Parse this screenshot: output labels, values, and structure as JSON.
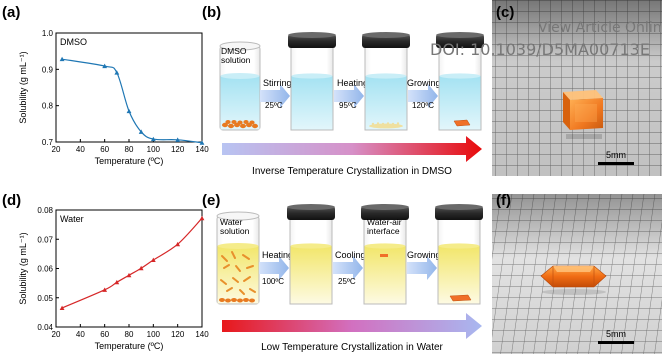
{
  "watermark": {
    "line1": "View Article Online",
    "line2": "DOI: 10.1039/D5MA00713E"
  },
  "panel_labels": {
    "a": "(a)",
    "b": "(b)",
    "c": "(c)",
    "d": "(d)",
    "e": "(e)",
    "f": "(f)"
  },
  "scale_bar": {
    "top": "5mm",
    "bottom": "5mm"
  },
  "chart_data": [
    {
      "type": "line",
      "series_label": "DMSO",
      "x": [
        25,
        60,
        70,
        80,
        90,
        100,
        120,
        140
      ],
      "y": [
        0.928,
        0.909,
        0.891,
        0.785,
        0.728,
        0.708,
        0.706,
        0.698
      ],
      "xlabel": "Temperature (ºC)",
      "ylabel": "Solubility (g mL⁻¹)",
      "xlim": [
        20,
        140
      ],
      "ylim": [
        0.7,
        1.0
      ],
      "xticks": [
        "20",
        "40",
        "60",
        "80",
        "100",
        "120",
        "140"
      ],
      "yticks": [
        "0.7",
        "0.8",
        "0.9",
        "1.0"
      ],
      "color": "#1f77b4"
    },
    {
      "type": "line",
      "series_label": "Water",
      "x": [
        25,
        60,
        70,
        80,
        90,
        100,
        120,
        140
      ],
      "y": [
        0.0465,
        0.0527,
        0.0553,
        0.0577,
        0.0601,
        0.0629,
        0.0683,
        0.0772
      ],
      "xlabel": "Temperature (ºC)",
      "ylabel": "Solubility (g mL⁻¹)",
      "xlim": [
        20,
        140
      ],
      "ylim": [
        0.04,
        0.08
      ],
      "xticks": [
        "20",
        "40",
        "60",
        "80",
        "100",
        "120",
        "140"
      ],
      "yticks": [
        "0.04",
        "0.05",
        "0.06",
        "0.07",
        "0.08"
      ],
      "color": "#d62728"
    }
  ],
  "diagram_b": {
    "jar_label": "DMSO\nsolution",
    "steps": [
      {
        "label": "Stirring",
        "sub": "25ºC"
      },
      {
        "label": "Heating",
        "sub": "95ºC"
      },
      {
        "label": "Growing",
        "sub": "120ºC"
      }
    ],
    "caption": "Inverse Temperature Crystallization in DMSO",
    "colors": {
      "solution": "#bfeaf4",
      "precipitate": "#e87a20",
      "fine_precipitate": "#f1e2a0",
      "crystal": "#f07028"
    }
  },
  "diagram_e": {
    "jar_label": "Water\nsolution",
    "steps": [
      {
        "label": "Heating",
        "sub": "100ºC"
      },
      {
        "label": "Cooling",
        "sub": "25ºC"
      },
      {
        "label": "Growing",
        "sub": ""
      }
    ],
    "interface_label": "Water-air\ninterface",
    "caption": "Low Temperature Crystallization in Water",
    "colors": {
      "solution": "#f8f0a0",
      "precipitate": "#e8902c",
      "crystal": "#f07028"
    }
  }
}
